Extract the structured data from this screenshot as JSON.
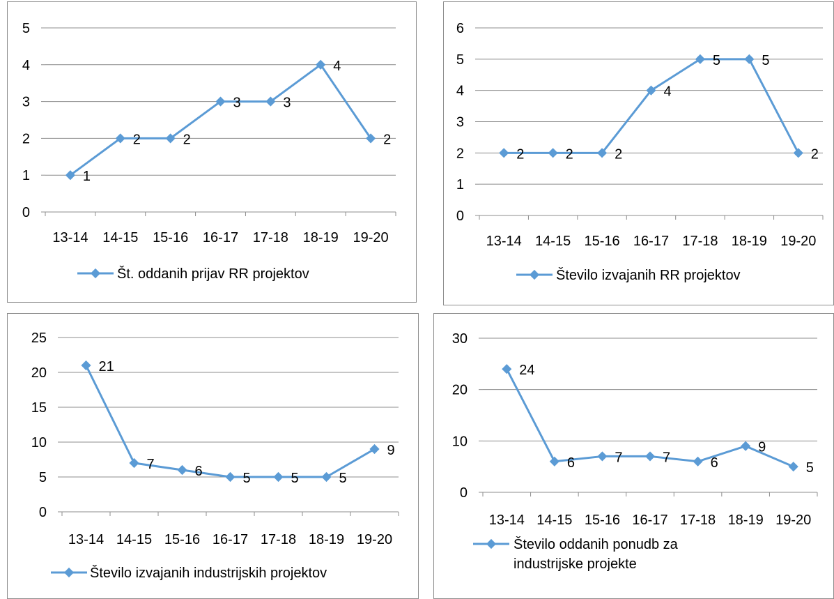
{
  "chart_data": [
    {
      "type": "line",
      "title": "",
      "xlabel": "",
      "ylabel": "",
      "categories": [
        "13-14",
        "14-15",
        "15-16",
        "16-17",
        "17-18",
        "18-19",
        "19-20"
      ],
      "series": [
        {
          "name": "Št. oddanih prijav RR projektov",
          "values": [
            1,
            2,
            2,
            3,
            3,
            4,
            2
          ]
        }
      ],
      "ylim": [
        0,
        5
      ],
      "yticks": [
        0,
        1,
        2,
        3,
        4,
        5
      ],
      "grid": true,
      "legend": "bottom",
      "data_labels": true,
      "color": "#5b9bd5"
    },
    {
      "type": "line",
      "title": "",
      "xlabel": "",
      "ylabel": "",
      "categories": [
        "13-14",
        "14-15",
        "15-16",
        "16-17",
        "17-18",
        "18-19",
        "19-20"
      ],
      "series": [
        {
          "name": "Število izvajanih RR projektov",
          "values": [
            2,
            2,
            2,
            4,
            5,
            5,
            2
          ]
        }
      ],
      "ylim": [
        0,
        6
      ],
      "yticks": [
        0,
        1,
        2,
        3,
        4,
        5,
        6
      ],
      "grid": true,
      "legend": "bottom",
      "data_labels": true,
      "color": "#5b9bd5"
    },
    {
      "type": "line",
      "title": "",
      "xlabel": "",
      "ylabel": "",
      "categories": [
        "13-14",
        "14-15",
        "15-16",
        "16-17",
        "17-18",
        "18-19",
        "19-20"
      ],
      "series": [
        {
          "name": "Število izvajanih industrijskih projektov",
          "values": [
            21,
            7,
            6,
            5,
            5,
            5,
            9
          ]
        }
      ],
      "ylim": [
        0,
        25
      ],
      "yticks": [
        0,
        5,
        10,
        15,
        20,
        25
      ],
      "grid": true,
      "legend": "bottom",
      "data_labels": true,
      "color": "#5b9bd5"
    },
    {
      "type": "line",
      "title": "",
      "xlabel": "",
      "ylabel": "",
      "categories": [
        "13-14",
        "14-15",
        "15-16",
        "16-17",
        "17-18",
        "18-19",
        "19-20"
      ],
      "series": [
        {
          "name": "Število oddanih ponudb za industrijske projekte",
          "values": [
            24,
            6,
            7,
            7,
            6,
            9,
            5
          ]
        }
      ],
      "ylim": [
        0,
        30
      ],
      "yticks": [
        0,
        10,
        20,
        30
      ],
      "grid": true,
      "legend": "bottom",
      "data_labels": true,
      "color": "#5b9bd5"
    }
  ]
}
